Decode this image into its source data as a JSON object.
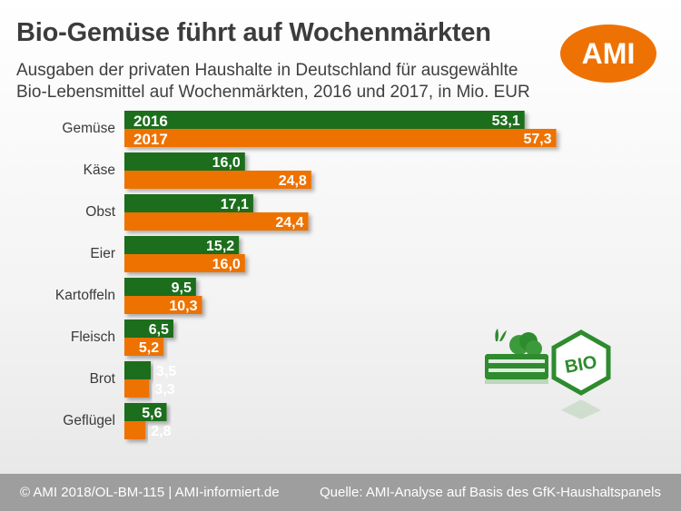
{
  "header": {
    "title": "Bio-Gemüse führt auf Wochenmärkten",
    "subtitle_line1": "Ausgaben der privaten Haushalte in Deutschland für ausgewählte",
    "subtitle_line2": "Bio-Lebensmittel auf Wochenmärkten, 2016 und 2017, in Mio. EUR"
  },
  "logo": {
    "text": "AMI",
    "color": "#ee7203"
  },
  "chart_data": {
    "type": "bar",
    "orientation": "horizontal",
    "title": "Bio-Gemüse führt auf Wochenmärkten",
    "subtitle": "Ausgaben der privaten Haushalte in Deutschland für ausgewählte Bio-Lebensmittel auf Wochenmärkten, 2016 und 2017, in Mio. EUR",
    "categories": [
      "Gemüse",
      "Käse",
      "Obst",
      "Eier",
      "Kartoffeln",
      "Fleisch",
      "Brot",
      "Geflügel"
    ],
    "series": [
      {
        "name": "2016",
        "color": "#1f6e1f",
        "values": [
          53.1,
          16.0,
          17.1,
          15.2,
          9.5,
          6.5,
          3.5,
          5.6
        ],
        "labels": [
          "53,1",
          "16,0",
          "17,1",
          "15,2",
          "9,5",
          "6,5",
          "3,5",
          "5,6"
        ]
      },
      {
        "name": "2017",
        "color": "#ee7203",
        "values": [
          57.3,
          24.8,
          24.4,
          16.0,
          10.3,
          5.2,
          3.3,
          2.8
        ],
        "labels": [
          "57,3",
          "24,8",
          "24,4",
          "16,0",
          "10,3",
          "5,2",
          "3,3",
          "2,8"
        ]
      }
    ],
    "xlabel": "",
    "ylabel": "",
    "xlim": [
      0,
      60
    ],
    "grid": false
  },
  "icons": {
    "bio_label": "BIO",
    "green": "#2e8b2e"
  },
  "footer": {
    "left": "© AMI 2018/OL-BM-115 | AMI-informiert.de",
    "right": "Quelle: AMI-Analyse auf Basis des GfK-Haushaltspanels"
  }
}
